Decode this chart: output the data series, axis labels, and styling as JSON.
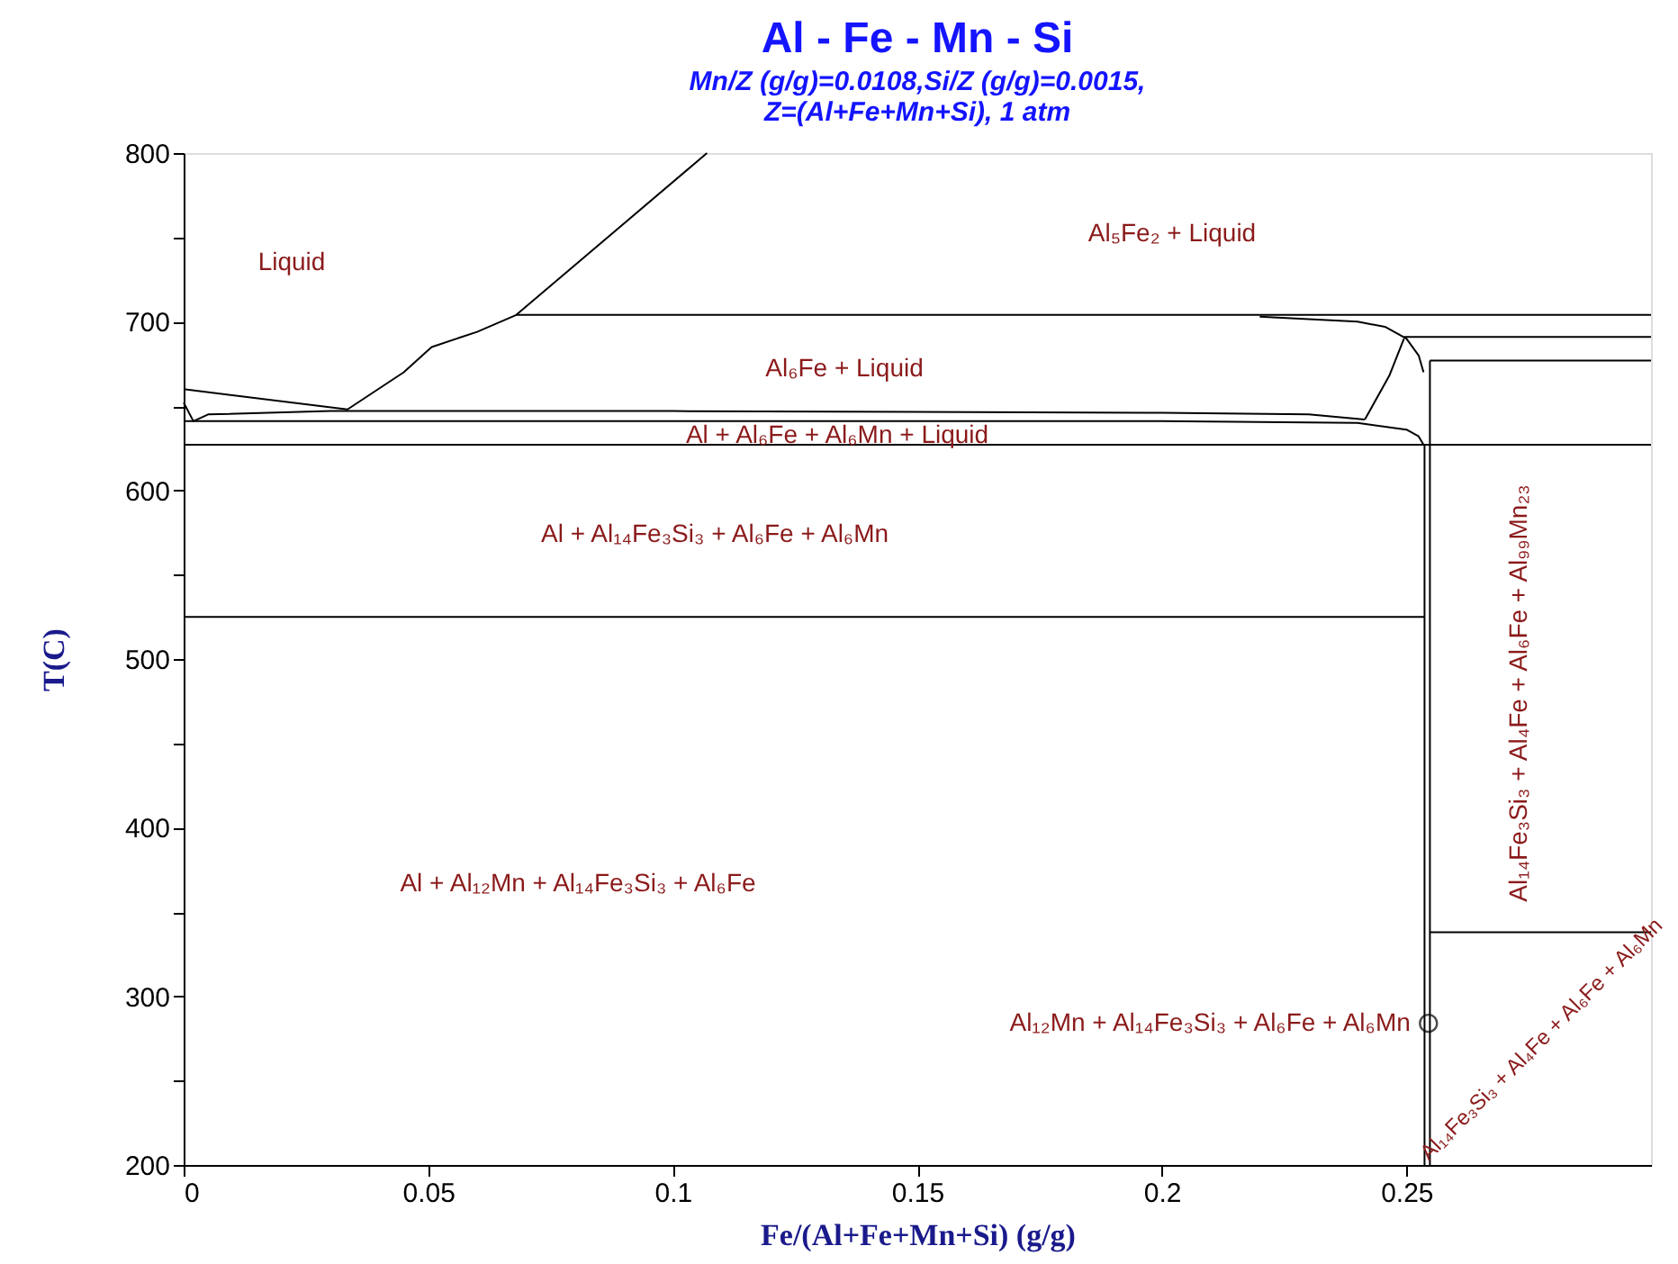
{
  "chart_data": {
    "type": "line",
    "title": "Al - Fe - Mn - Si",
    "subtitle": "Mn/Z (g/g)=0.0108,Si/Z (g/g)=0.0015,\nZ=(Al+Fe+Mn+Si), 1 atm",
    "xlabel": "Fe/(Al+Fe+Mn+Si) (g/g)",
    "ylabel": "T(C)",
    "xlim": [
      0,
      0.3
    ],
    "ylim": [
      200,
      800
    ],
    "xticks": [
      0,
      0.05,
      0.1,
      0.15,
      0.2,
      0.25
    ],
    "yticks": [
      200,
      {
        "value": 250,
        "label": null
      },
      300,
      {
        "value": 350,
        "label": null
      },
      400,
      {
        "value": 450,
        "label": null
      },
      500,
      {
        "value": 550,
        "label": null
      },
      600,
      {
        "value": 650,
        "label": null
      },
      700,
      {
        "value": 750,
        "label": null
      },
      800
    ],
    "grid": false,
    "marker": "none",
    "line_style": "solid",
    "series": [
      {
        "color": "#000000",
        "x": [
          0,
          0.0335,
          0.045,
          0.0507,
          0.06,
          0.068,
          0.107
        ],
        "values": [
          660,
          648,
          670,
          685,
          694,
          704,
          800
        ]
      },
      {
        "color": "#000000",
        "x": [
          0.068,
          0.3
        ],
        "values": [
          704,
          704
        ]
      },
      {
        "color": "#000000",
        "x": [
          0.22,
          0.24,
          0.2456,
          0.25,
          0.2525,
          0.2535
        ],
        "values": [
          703,
          700,
          697,
          690,
          680,
          670
        ]
      },
      {
        "color": "#000000",
        "x": [
          0.2495,
          0.3
        ],
        "values": [
          691,
          691
        ]
      },
      {
        "color": "#000000",
        "x": [
          0.2548,
          0.3
        ],
        "values": [
          677,
          677
        ]
      },
      {
        "color": "#000000",
        "x": [
          0.2415,
          0.2465,
          0.2495
        ],
        "values": [
          642,
          668,
          690
        ]
      },
      {
        "color": "#000000",
        "x": [
          0,
          0.002,
          0.005,
          0.03,
          0.1,
          0.2,
          0.23,
          0.2415
        ],
        "values": [
          652,
          641,
          645,
          647,
          647,
          646,
          645,
          642
        ]
      },
      {
        "color": "#000000",
        "x": [
          0,
          0.1,
          0.2,
          0.24,
          0.25,
          0.2525,
          0.2535
        ],
        "values": [
          641,
          641,
          641,
          640,
          636,
          632,
          627
        ]
      },
      {
        "color": "#000000",
        "x": [
          0,
          0.3
        ],
        "values": [
          627,
          627
        ]
      },
      {
        "color": "#000000",
        "x": [
          0,
          0.2537
        ],
        "values": [
          525,
          525
        ]
      },
      {
        "color": "#000000",
        "x": [
          0.2548,
          0.3
        ],
        "values": [
          338,
          338
        ]
      },
      {
        "color": "#000000",
        "x": [
          0.2537,
          0.2537
        ],
        "values": [
          627,
          200
        ]
      },
      {
        "color": "#000000",
        "x": [
          0.2548,
          0.2548
        ],
        "values": [
          677,
          200
        ]
      },
      {
        "type": "scatter",
        "marker": "circle",
        "color": "#000000",
        "x": [
          0.2545
        ],
        "values": [
          284
        ]
      }
    ],
    "annotations": [
      "Liquid",
      "Al₅Fe₂ + Liquid",
      "Al₆Fe + Liquid",
      "Al + Al₆Fe + Al₆Mn + Liquid",
      "Al + Al₁₄Fe₃Si₃ + Al₆Fe + Al₆Mn",
      "Al₁₄Fe₃Si₃ + Al₄Fe + Al₆Fe + Al₉₉Mn₂₃",
      "Al + Al₁₂Mn + Al₁₄Fe₃Si₃ + Al₆Fe",
      {
        "text": "Al₁₂Mn + Al₁₄Fe₃Si₃ + Al₆Fe + Al₆Mn",
        "x": 0.2545,
        "y": 284
      },
      "Al₁₄Fe₃Si₃ + Al₄Fe + Al₆Fe + Al₆Mn"
    ]
  }
}
